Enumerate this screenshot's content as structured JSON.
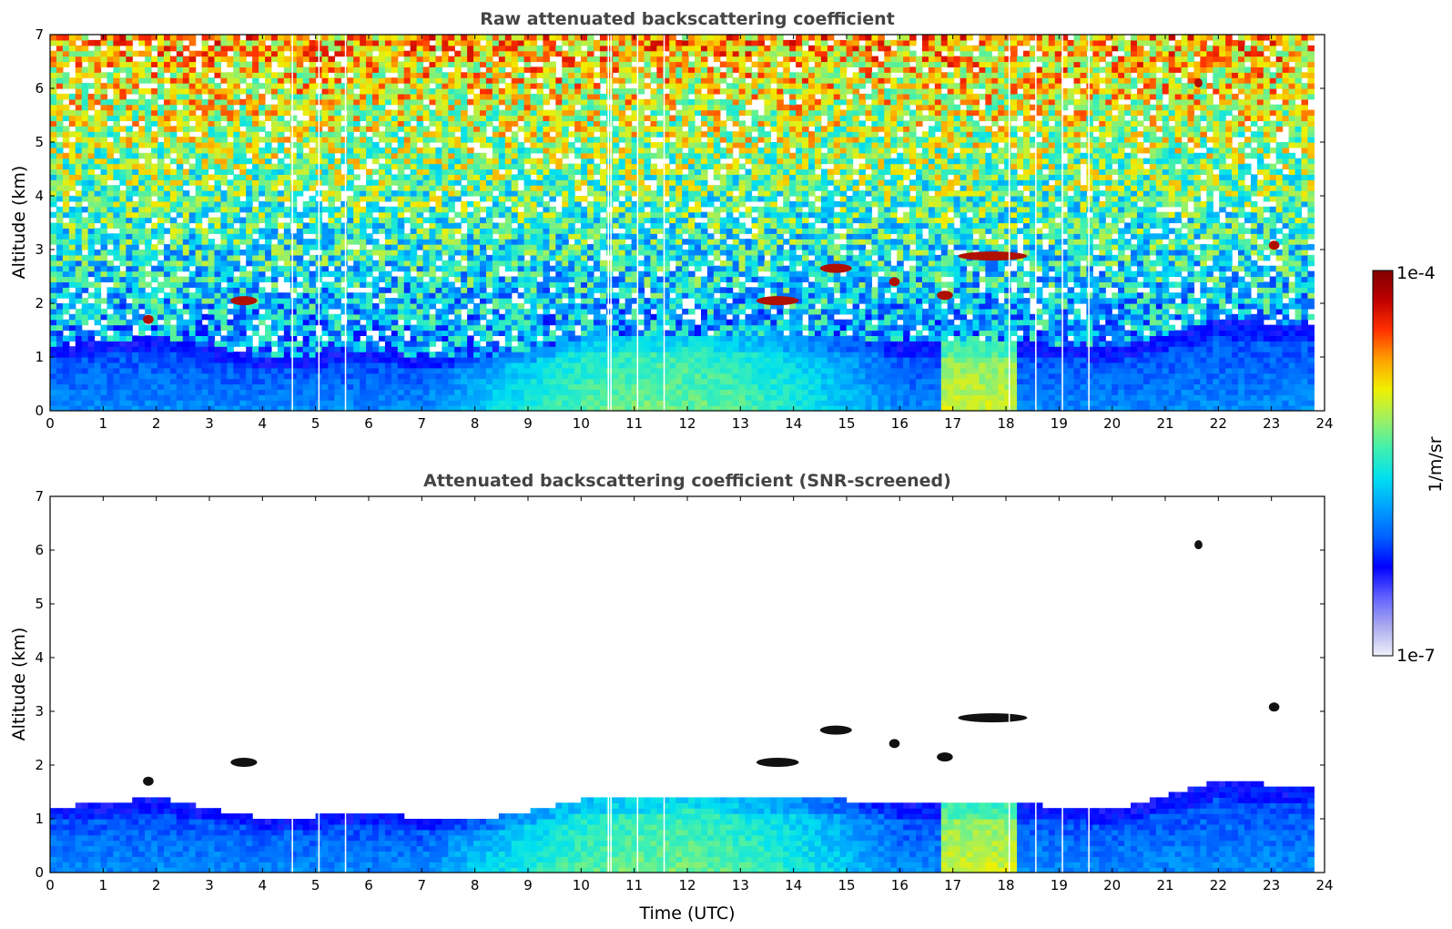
{
  "chart_data": [
    {
      "type": "heatmap",
      "title": "Raw attenuated backscattering coefficient",
      "xlabel": "",
      "ylabel": "Altitude (km)",
      "xlim": [
        0,
        24
      ],
      "ylim": [
        0,
        7
      ],
      "xticks": [
        "0",
        "1",
        "2",
        "3",
        "4",
        "5",
        "6",
        "7",
        "8",
        "9",
        "10",
        "11",
        "12",
        "13",
        "14",
        "15",
        "16",
        "17",
        "18",
        "19",
        "20",
        "21",
        "22",
        "23",
        "24"
      ],
      "yticks": [
        "0",
        "1",
        "2",
        "3",
        "4",
        "5",
        "6",
        "7"
      ],
      "screened": false,
      "data_end_time": 23.8,
      "missing_profiles_time": [
        4.55,
        5.05,
        5.55,
        10.5,
        10.55,
        11.05,
        11.55,
        18.05,
        18.55,
        19.05,
        19.55
      ],
      "cloud_layers": [
        {
          "time_start": 1.75,
          "time_end": 1.95,
          "altitude_km": 1.7
        },
        {
          "time_start": 3.4,
          "time_end": 3.9,
          "altitude_km": 2.05
        },
        {
          "time_start": 13.3,
          "time_end": 14.1,
          "altitude_km": 2.05
        },
        {
          "time_start": 14.5,
          "time_end": 15.1,
          "altitude_km": 2.65
        },
        {
          "time_start": 15.8,
          "time_end": 16.0,
          "altitude_km": 2.4
        },
        {
          "time_start": 16.7,
          "time_end": 17.0,
          "altitude_km": 2.15
        },
        {
          "time_start": 17.1,
          "time_end": 18.4,
          "altitude_km": 2.88
        },
        {
          "time_start": 21.55,
          "time_end": 21.7,
          "altitude_km": 6.1
        },
        {
          "time_start": 22.95,
          "time_end": 23.15,
          "altitude_km": 3.08
        }
      ],
      "aerosol_boundary_layer_top_km": [
        {
          "time": 0,
          "value": 1.2
        },
        {
          "time": 2,
          "value": 1.4
        },
        {
          "time": 4,
          "value": 1.0
        },
        {
          "time": 6,
          "value": 1.1
        },
        {
          "time": 8,
          "value": 0.95
        },
        {
          "time": 10,
          "value": 1.35
        },
        {
          "time": 12,
          "value": 1.45
        },
        {
          "time": 14,
          "value": 1.4
        },
        {
          "time": 16,
          "value": 1.3
        },
        {
          "time": 18,
          "value": 1.3
        },
        {
          "time": 20,
          "value": 1.15
        },
        {
          "time": 22,
          "value": 1.7
        },
        {
          "time": 23.8,
          "value": 1.6
        }
      ]
    },
    {
      "type": "heatmap",
      "title": "Attenuated backscattering coefficient (SNR-screened)",
      "xlabel": "Time (UTC)",
      "ylabel": "Altitude (km)",
      "xlim": [
        0,
        24
      ],
      "ylim": [
        0,
        7
      ],
      "xticks": [
        "0",
        "1",
        "2",
        "3",
        "4",
        "5",
        "6",
        "7",
        "8",
        "9",
        "10",
        "11",
        "12",
        "13",
        "14",
        "15",
        "16",
        "17",
        "18",
        "19",
        "20",
        "21",
        "22",
        "23",
        "24"
      ],
      "yticks": [
        "0",
        "1",
        "2",
        "3",
        "4",
        "5",
        "6",
        "7"
      ],
      "screened": true,
      "data_end_time": 23.8
    }
  ],
  "colorbar": {
    "label": "1/m/sr",
    "max_label": "1e-4",
    "min_label": "1e-7",
    "colormap": [
      "#f0f0fa",
      "#aaaaf0",
      "#6060ff",
      "#0000ff",
      "#0060ff",
      "#00a0ff",
      "#00e0f0",
      "#40f0b0",
      "#a0f060",
      "#f0f000",
      "#ffa000",
      "#ff3000",
      "#c00000",
      "#800000"
    ]
  }
}
